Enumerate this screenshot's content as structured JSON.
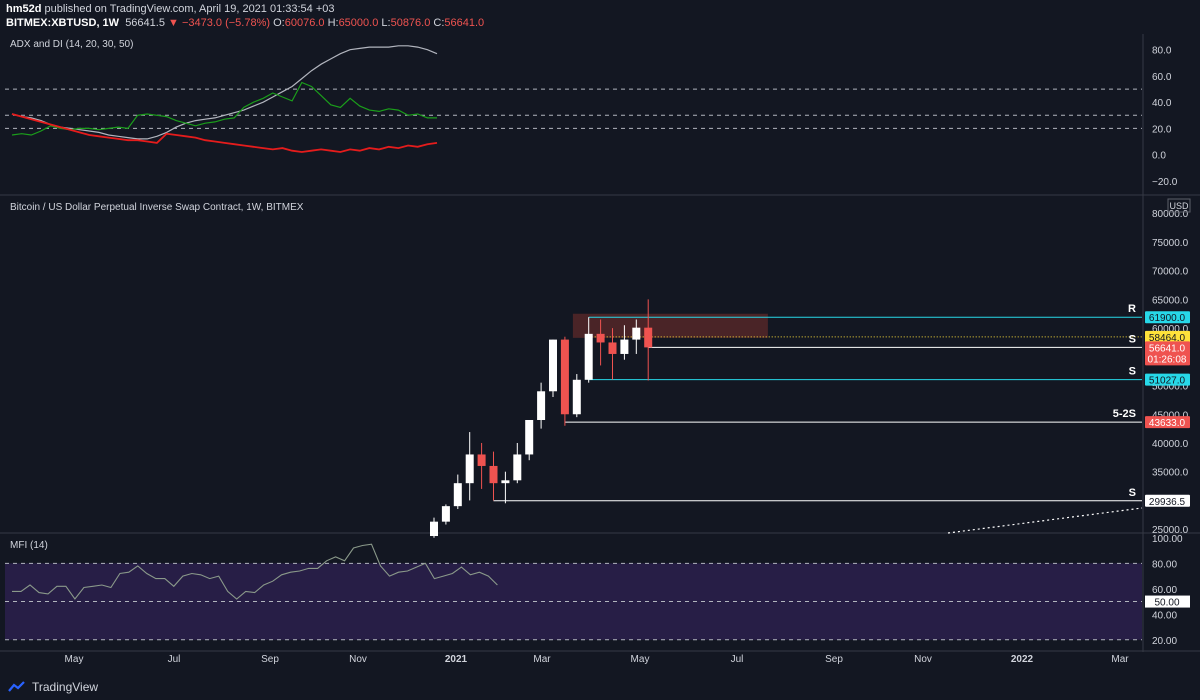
{
  "header": {
    "author": "hm52d",
    "published_text": "published on TradingView.com, April 19, 2021 01:33:54 +03",
    "symbol": "BITMEX:XBTUSD, 1W",
    "last": "56641.5",
    "change": "−3473.0 (−5.78%)",
    "o_label": "O:",
    "o": "60076.0",
    "h_label": "H:",
    "h": "65000.0",
    "l_label": "L:",
    "l": "50876.0",
    "c_label": "C:",
    "c": "56641.0"
  },
  "colors": {
    "background": "#131722",
    "candle_up": "#ffffff",
    "candle_down": "#ef5350",
    "adx": "#b2b5be",
    "plus_di": "#1b9e1b",
    "minus_di": "#e51c1c",
    "mfi_line": "#7e8a7e",
    "mfi_band": "#2a1f4a",
    "label_cyan": "#27d8e8",
    "label_yellow": "#ffe23a",
    "label_red": "#ef5350",
    "zone": "#5e2a2a"
  },
  "x_axis": {
    "labels": [
      "May",
      "Jul",
      "Sep",
      "Nov",
      "2021",
      "Mar",
      "May",
      "Jul",
      "Sep",
      "Nov",
      "2022",
      "Mar"
    ]
  },
  "footer": {
    "brand": "TradingView"
  },
  "chart_data": [
    {
      "type": "line",
      "title": "ADX and DI (14, 20, 30, 50)",
      "ylim": [
        -30,
        92
      ],
      "y_ticks": [
        "80.0",
        "60.0",
        "40.0",
        "20.0",
        "0.0",
        "−20.0"
      ],
      "y_tick_values": [
        80,
        60,
        40,
        20,
        0,
        -20
      ],
      "hlines": [
        50,
        30,
        20
      ],
      "x": [
        0,
        1,
        2,
        3,
        4,
        5,
        6,
        7,
        8,
        9,
        10,
        11,
        12,
        13,
        14,
        15,
        16,
        17,
        18,
        19,
        20,
        21,
        22,
        23,
        24,
        25,
        26,
        27,
        28,
        29,
        30,
        31,
        32,
        33,
        34,
        35,
        36,
        37,
        38,
        39,
        40,
        41,
        42,
        43,
        44,
        45,
        46,
        47,
        48,
        49,
        50
      ],
      "series": [
        {
          "key": "adx",
          "values": [
            31,
            29,
            28,
            26,
            23,
            21,
            20,
            19,
            18,
            17,
            15,
            14,
            13,
            12,
            12,
            14,
            17,
            21,
            24,
            26,
            27,
            28,
            30,
            32,
            34,
            37,
            40,
            44,
            48,
            52,
            58,
            64,
            69,
            73,
            77,
            80,
            81,
            82,
            82,
            82,
            83,
            83,
            82,
            80,
            77,
            null,
            null,
            null,
            null,
            null,
            null
          ]
        },
        {
          "key": "plus_di",
          "values": [
            15,
            16,
            15,
            18,
            22,
            20,
            19,
            20,
            20,
            19,
            20,
            21,
            20,
            30,
            31,
            30,
            29,
            26,
            24,
            22,
            24,
            25,
            27,
            28,
            36,
            40,
            43,
            47,
            44,
            41,
            55,
            52,
            45,
            38,
            36,
            43,
            37,
            34,
            33,
            35,
            34,
            30,
            31,
            28,
            28,
            null,
            null,
            null,
            null,
            null,
            null
          ]
        },
        {
          "key": "minus_di",
          "values": [
            31,
            29,
            27,
            25,
            23,
            21,
            19,
            17,
            15,
            14,
            13,
            12,
            11,
            11,
            10,
            9,
            16,
            15,
            14,
            13,
            11,
            10,
            9,
            8,
            7,
            6,
            5,
            4,
            5,
            3,
            2,
            3,
            4,
            3,
            2,
            4,
            3,
            5,
            4,
            6,
            5,
            7,
            6,
            8,
            9,
            null,
            null,
            null,
            null,
            null,
            null
          ]
        }
      ]
    },
    {
      "type": "candlestick",
      "title": "Bitcoin / US Dollar Perpetual Inverse Swap Contract, 1W, BITMEX",
      "ylabel": "USD",
      "ylim": [
        24500,
        83000
      ],
      "y_ticks": [
        "80000.0",
        "75000.0",
        "70000.0",
        "65000.0",
        "60000.0",
        "55000.0",
        "50000.0",
        "45000.0",
        "40000.0",
        "35000.0",
        "30000.0",
        "25000.0"
      ],
      "y_tick_values": [
        80000,
        75000,
        70000,
        65000,
        60000,
        55000,
        50000,
        45000,
        40000,
        35000,
        30000,
        25000
      ],
      "candles": [
        {
          "x": 35,
          "o": 23800,
          "h": 27000,
          "l": 23500,
          "c": 26300
        },
        {
          "x": 36,
          "o": 26300,
          "h": 29300,
          "l": 25800,
          "c": 29000
        },
        {
          "x": 37,
          "o": 29000,
          "h": 34500,
          "l": 28500,
          "c": 33000
        },
        {
          "x": 38,
          "o": 33000,
          "h": 41900,
          "l": 30000,
          "c": 38000
        },
        {
          "x": 39,
          "o": 38000,
          "h": 40000,
          "l": 32000,
          "c": 36000
        },
        {
          "x": 40,
          "o": 36000,
          "h": 38500,
          "l": 30000,
          "c": 33000
        },
        {
          "x": 41,
          "o": 33000,
          "h": 35000,
          "l": 29500,
          "c": 33500
        },
        {
          "x": 42,
          "o": 33500,
          "h": 40000,
          "l": 33000,
          "c": 38000
        },
        {
          "x": 43,
          "o": 38000,
          "h": 44000,
          "l": 37000,
          "c": 44000
        },
        {
          "x": 44,
          "o": 44000,
          "h": 50500,
          "l": 42500,
          "c": 49000
        },
        {
          "x": 45,
          "o": 49000,
          "h": 58000,
          "l": 48000,
          "c": 58000
        },
        {
          "x": 46,
          "o": 58000,
          "h": 58500,
          "l": 43000,
          "c": 45000
        },
        {
          "x": 47,
          "o": 45000,
          "h": 52000,
          "l": 44500,
          "c": 51000
        },
        {
          "x": 48,
          "o": 51000,
          "h": 61900,
          "l": 50500,
          "c": 59000
        },
        {
          "x": 49,
          "o": 59000,
          "h": 61500,
          "l": 53500,
          "c": 57500
        },
        {
          "x": 50,
          "o": 57500,
          "h": 60000,
          "l": 51000,
          "c": 55500
        },
        {
          "x": 51,
          "o": 55500,
          "h": 60500,
          "l": 54500,
          "c": 58000
        },
        {
          "x": 52,
          "o": 58000,
          "h": 61500,
          "l": 55500,
          "c": 60076
        },
        {
          "x": 53,
          "o": 60076,
          "h": 65000,
          "l": 50876,
          "c": 56641
        }
      ],
      "levels": [
        {
          "price": 61900,
          "value_label": "61900.0",
          "tag": "R",
          "x_start": 48,
          "style": "cyan"
        },
        {
          "price": 58464,
          "value_label": "58464.0",
          "tag": "",
          "x_start": 48,
          "style": "yellow"
        },
        {
          "price": 56641,
          "value_label": "56641.0",
          "sub_label": "01:26:08",
          "tag": "S",
          "x_start": 53,
          "style": "red"
        },
        {
          "price": 51027,
          "value_label": "51027.0",
          "tag": "S",
          "x_start": 48,
          "style": "cyan"
        },
        {
          "price": 43633,
          "value_label": "43633.0",
          "tag": "5-2S",
          "x_start": 46,
          "style": "red"
        },
        {
          "price": 29936.5,
          "value_label": "29936.5",
          "tag": "S",
          "x_start": 40,
          "style": "white"
        }
      ],
      "zone": {
        "x_start": 46,
        "x_end": 60,
        "top": 62500,
        "bottom": 58300
      }
    },
    {
      "type": "line",
      "title": "MFI (14)",
      "ylim": [
        12,
        103
      ],
      "y_ticks": [
        "100.00",
        "80.00",
        "60.00",
        "40.00",
        "20.00"
      ],
      "y_tick_values": [
        100,
        80,
        60,
        40,
        20
      ],
      "hlines": [
        80,
        50,
        20
      ],
      "last_label": "50.00",
      "series": [
        {
          "key": "mfi",
          "values": [
            58,
            58,
            63,
            57,
            56,
            62,
            62,
            52,
            61,
            62,
            63,
            61,
            72,
            73,
            78,
            72,
            68,
            68,
            62,
            70,
            72,
            71,
            68,
            70,
            58,
            52,
            58,
            57,
            63,
            66,
            71,
            73,
            74,
            76,
            76,
            82,
            85,
            82,
            92,
            94,
            95,
            78,
            70,
            73,
            74,
            77,
            80,
            68,
            70,
            72,
            77,
            71,
            73,
            70,
            63
          ]
        }
      ]
    }
  ]
}
